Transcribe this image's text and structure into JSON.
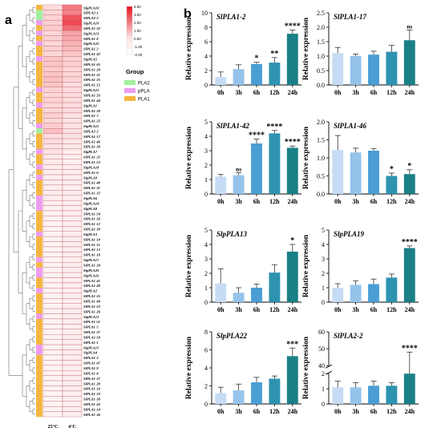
{
  "panels": {
    "a": "a",
    "b": "b"
  },
  "heatmap": {
    "columns": [
      "25°C",
      "4°C"
    ],
    "genes": [
      "SlpPLA10",
      "SlPLA2-1",
      "SlPLA2-3",
      "SlpPLA19",
      "SlPLA1-32",
      "SlpPLA13",
      "SlPLA1-8",
      "SlpPLA22",
      "SlPLA1-2",
      "SlPLA1-42",
      "SlpPLA5",
      "SlPLA1-45",
      "SlPLA1-20",
      "SlPLA1-21",
      "SlPLA1-35",
      "SlPLA1-15",
      "SlpPLA21",
      "SlPLA1-33",
      "SlPLA1-44",
      "SlpPLA1",
      "SlPLA1-30",
      "SlPLA1-7",
      "SlPLA1-25",
      "SlpPLA11",
      "SlPLA2-2",
      "SlPLA1-17",
      "SlPLA1-46",
      "SlPLA1-34",
      "SlpPLA7",
      "SlPLA1-22",
      "SlPLA1-53",
      "SlpPLA18",
      "SlPLA1-6",
      "SlpPLA9",
      "SlPLA1-48",
      "SlPLA1-31",
      "SlPLA1-32",
      "SlpPLA6",
      "SlpPLA14",
      "SlpPLA8",
      "SlPLA1-54",
      "SlPLA1-56",
      "SlPLA1-12",
      "SlPLA1-39",
      "SlpPLA3",
      "SlPLA1-10",
      "SlPLA1-11",
      "SlPLA1-13",
      "SlPLA1-18",
      "SlpPLA17",
      "SlPLA1-24",
      "SlpPLA20",
      "SlpPLA16",
      "SlPLA1-41",
      "SlPLA1-49",
      "SlpPLA2",
      "SlPLA1-55",
      "SlPLA1-40",
      "SlPLA1-23",
      "SlPLA1-26",
      "SlpPLA12",
      "SlPLA1-51",
      "SlPLA1-5",
      "SlPLA1-27",
      "SlPLA1-50",
      "SlPLA1-1",
      "SlpPLA15",
      "SlpPLA4",
      "SlPLA1-3",
      "SlPLA1-47",
      "SlPLA1-9",
      "SlPLA1-4",
      "SlPLA1-37",
      "SlPLA1-28",
      "SlPLA1-16",
      "SlPLA1-19",
      "SlPLA1-38",
      "SlPLA1-43",
      "SlPLA1-14",
      "SlPLA1-36"
    ],
    "values_25": [
      0.4,
      0.5,
      0.6,
      0.6,
      0.7,
      0.5,
      0.6,
      0.5,
      0.6,
      0.5,
      0.8,
      0.8,
      0.7,
      0.8,
      0.9,
      0.8,
      0.6,
      0.5,
      0.6,
      0.5,
      0.5,
      0.6,
      0.5,
      0.7,
      0.9,
      0.4,
      0.4,
      0.3,
      0.3,
      0.2,
      0.2,
      0.1,
      0.1,
      0.1,
      0.1,
      0.1,
      0.1,
      0.1,
      0.1,
      0.0,
      0.0,
      0.0,
      0.0,
      0.0,
      0.0,
      0.0,
      0.0,
      0.0,
      0.0,
      0.0,
      0.0,
      0.0,
      0.0,
      0.0,
      0.0,
      0.0,
      0.0,
      0.0,
      0.0,
      0.0,
      0.0,
      0.0,
      0.0,
      0.0,
      0.0,
      0.0,
      0.0,
      0.0,
      0.0,
      0.0,
      0.0,
      0.0,
      0.0,
      0.0,
      0.0,
      0.0,
      0.0,
      0.0,
      0.0,
      0.0
    ],
    "values_4": [
      2.1,
      2.0,
      2.8,
      3.0,
      2.4,
      1.4,
      1.3,
      1.1,
      1.0,
      0.8,
      0.6,
      0.6,
      0.5,
      0.5,
      0.5,
      0.4,
      0.4,
      0.4,
      0.4,
      0.4,
      0.4,
      0.3,
      0.3,
      0.3,
      0.3,
      0.3,
      0.2,
      0.2,
      0.1,
      0.1,
      0.1,
      0.1,
      0.1,
      0.1,
      0.1,
      0.1,
      0.1,
      0.1,
      0.1,
      0.1,
      0.1,
      0.1,
      0.1,
      0.1,
      0.1,
      0.1,
      0.1,
      0.1,
      0.1,
      0.1,
      0.1,
      0.1,
      0.1,
      0.1,
      0.1,
      0.1,
      0.1,
      0.1,
      0.1,
      0.1,
      0.1,
      0.1,
      0.1,
      0.1,
      0.1,
      0.1,
      0.1,
      0.1,
      0.1,
      0.1,
      0.1,
      0.1,
      0.1,
      0.1,
      0.1,
      0.1,
      0.1,
      0.1,
      0.1,
      0.1
    ],
    "groups": [
      "PLA1",
      "PLA2",
      "PLA2",
      "pPLA",
      "PLA1",
      "pPLA",
      "PLA1",
      "pPLA",
      "PLA1",
      "PLA1",
      "pPLA",
      "PLA1",
      "PLA1",
      "PLA1",
      "PLA1",
      "PLA1",
      "pPLA",
      "PLA1",
      "PLA1",
      "pPLA",
      "PLA1",
      "PLA1",
      "PLA1",
      "pPLA",
      "PLA2",
      "PLA1",
      "PLA1",
      "PLA1",
      "pPLA",
      "PLA1",
      "PLA1",
      "pPLA",
      "PLA1",
      "pPLA",
      "PLA1",
      "PLA1",
      "PLA1",
      "pPLA",
      "pPLA",
      "pPLA",
      "PLA1",
      "PLA1",
      "PLA1",
      "PLA1",
      "pPLA",
      "PLA1",
      "PLA1",
      "PLA1",
      "PLA1",
      "pPLA",
      "PLA1",
      "pPLA",
      "pPLA",
      "PLA1",
      "PLA1",
      "pPLA",
      "PLA1",
      "PLA1",
      "PLA1",
      "PLA1",
      "pPLA",
      "PLA1",
      "PLA1",
      "PLA1",
      "PLA1",
      "PLA1",
      "pPLA",
      "pPLA",
      "PLA1",
      "PLA1",
      "PLA1",
      "PLA1",
      "PLA1",
      "PLA1",
      "PLA1",
      "PLA1",
      "PLA1",
      "PLA1",
      "PLA1",
      "PLA1"
    ],
    "colorbar_ticks": [
      "4.00",
      "3.00",
      "2.00",
      "1.00",
      "0.00",
      "-1.00",
      "-2.00"
    ],
    "colorbar_range": [
      -2,
      4
    ],
    "colors": {
      "low": "#ffffff",
      "high": "#e8101c"
    },
    "legend": {
      "title": "Group",
      "items": [
        {
          "label": "PLA2",
          "color": "#a3ef9c"
        },
        {
          "label": "pPLA",
          "color": "#ee9cf0"
        },
        {
          "label": "PLA1",
          "color": "#f5b63e"
        }
      ]
    }
  },
  "chart_data": [
    {
      "type": "bar",
      "title": "SlPLA1-2",
      "categories": [
        "0h",
        "3h",
        "6h",
        "12h",
        "24h"
      ],
      "values": [
        1.1,
        2.2,
        2.9,
        3.1,
        7.1
      ],
      "errors": [
        0.7,
        0.6,
        0.25,
        0.7,
        0.5
      ],
      "significance": [
        "",
        "",
        "*",
        "**",
        "****"
      ],
      "ylabel": "Relative expression",
      "ylim": [
        0,
        10
      ],
      "yticks": [
        "0",
        "2",
        "4",
        "6",
        "8",
        "10"
      ]
    },
    {
      "type": "bar",
      "title": "SlPLA1-17",
      "categories": [
        "0h",
        "3h",
        "6h",
        "12h",
        "24h"
      ],
      "values": [
        1.1,
        1.0,
        1.05,
        1.15,
        1.55
      ],
      "errors": [
        0.2,
        0.07,
        0.12,
        0.22,
        0.35
      ],
      "significance": [
        "",
        "",
        "",
        "",
        "ns"
      ],
      "ylabel": "Relative expression",
      "ylim": [
        0,
        2.5
      ],
      "yticks": [
        "0.0",
        "0.5",
        "1.0",
        "1.5",
        "2.0",
        "2.5"
      ]
    },
    {
      "type": "bar",
      "title": "SlPLA1-42",
      "categories": [
        "0h",
        "3h",
        "6h",
        "12h",
        "24h"
      ],
      "values": [
        1.2,
        1.3,
        3.5,
        4.2,
        3.2
      ],
      "errors": [
        0.15,
        0.18,
        0.3,
        0.2,
        0.12
      ],
      "significance": [
        "",
        "ns",
        "****",
        "****",
        "****"
      ],
      "ylabel": "Relative expression",
      "ylim": [
        0,
        5
      ],
      "yticks": [
        "0",
        "1",
        "2",
        "3",
        "4",
        "5"
      ]
    },
    {
      "type": "bar",
      "title": "SlPLA1-46",
      "categories": [
        "0h",
        "3h",
        "6h",
        "12h",
        "24h"
      ],
      "values": [
        1.22,
        1.15,
        1.2,
        0.5,
        0.55
      ],
      "errors": [
        0.4,
        0.12,
        0.06,
        0.08,
        0.12
      ],
      "significance": [
        "",
        "",
        "",
        "*",
        "*"
      ],
      "ylabel": "Relative expression",
      "ylim": [
        0,
        2
      ],
      "yticks": [
        "0.0",
        "0.5",
        "1.0",
        "1.5",
        "2.0"
      ]
    },
    {
      "type": "bar",
      "title": "SlpPLA13",
      "categories": [
        "0h",
        "3h",
        "6h",
        "12h",
        "24h"
      ],
      "values": [
        1.3,
        0.65,
        1.0,
        2.05,
        3.5
      ],
      "errors": [
        1.0,
        0.35,
        0.25,
        0.55,
        0.5
      ],
      "significance": [
        "",
        "",
        "",
        "",
        "*"
      ],
      "ylabel": "Relative expression",
      "ylim": [
        0,
        5
      ],
      "yticks": [
        "0",
        "1",
        "2",
        "3",
        "4",
        "5"
      ]
    },
    {
      "type": "bar",
      "title": "SlpPLA19",
      "categories": [
        "0h",
        "3h",
        "6h",
        "12h",
        "24h"
      ],
      "values": [
        1.0,
        1.2,
        1.25,
        1.7,
        3.75
      ],
      "errors": [
        0.28,
        0.28,
        0.35,
        0.25,
        0.15
      ],
      "significance": [
        "",
        "",
        "",
        "",
        "****"
      ],
      "ylabel": "Relative expression",
      "ylim": [
        0,
        5
      ],
      "yticks": [
        "0",
        "1",
        "2",
        "3",
        "4",
        "5"
      ]
    },
    {
      "type": "bar",
      "title": "SlpPLA22",
      "categories": [
        "0h",
        "3h",
        "6h",
        "12h",
        "24h"
      ],
      "values": [
        1.2,
        1.5,
        2.4,
        2.8,
        5.3
      ],
      "errors": [
        0.65,
        0.7,
        0.55,
        0.3,
        0.9
      ],
      "significance": [
        "",
        "",
        "",
        "",
        "***"
      ],
      "ylabel": "Relative expression",
      "ylim": [
        0,
        8
      ],
      "yticks": [
        "0",
        "2",
        "4",
        "6",
        "8"
      ]
    },
    {
      "type": "bar",
      "title": "SlPLA2-2",
      "categories": [
        "0h",
        "3h",
        "6h",
        "12h",
        "24h"
      ],
      "values": [
        1.1,
        1.1,
        1.2,
        1.2,
        2.0
      ],
      "errors": [
        0.4,
        0.3,
        0.3,
        0.2,
        46
      ],
      "significance": [
        "",
        "",
        "",
        "",
        "****"
      ],
      "ylabel": "Relative expression",
      "broken_axis": true,
      "ylim_lower": [
        0,
        2
      ],
      "ylim_upper": [
        40,
        60
      ],
      "yticks_lower": [
        "0",
        "1",
        "2"
      ],
      "yticks_upper": [
        "40",
        "50",
        "60"
      ]
    }
  ],
  "bar_colors": [
    "#c6dcf4",
    "#95c3ea",
    "#4a9ed4",
    "#2e93b0",
    "#1a7f86"
  ]
}
